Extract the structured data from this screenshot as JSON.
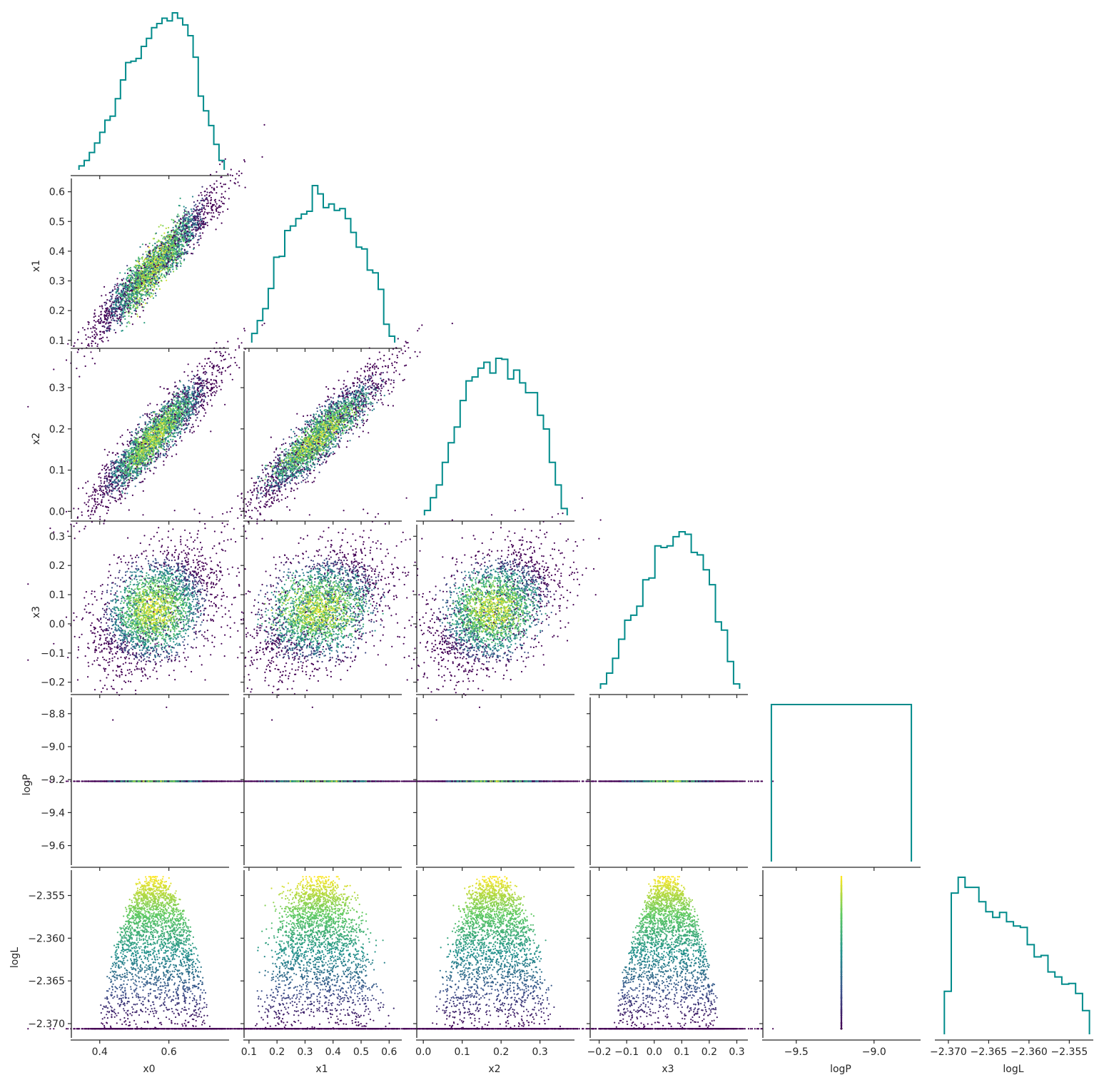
{
  "figure": {
    "type": "corner_pairplot",
    "hist_color": "#008b8b",
    "colormap": "viridis",
    "colormap_stops": [
      "#440154",
      "#3b528b",
      "#21918c",
      "#5ec962",
      "#fde725"
    ],
    "color_by": "logL"
  },
  "variables": [
    {
      "name": "x0",
      "label": "x0",
      "range": [
        0.32,
        0.77
      ],
      "ticks": [
        0.4,
        0.6
      ],
      "tick_labels": [
        "0.4",
        "0.6"
      ]
    },
    {
      "name": "x1",
      "label": "x1",
      "range": [
        0.085,
        0.64
      ],
      "ticks": [
        0.1,
        0.2,
        0.3,
        0.4,
        0.5,
        0.6
      ],
      "tick_labels": [
        "0.1",
        "0.2",
        "0.3",
        "0.4",
        "0.5",
        "0.6"
      ]
    },
    {
      "name": "x2",
      "label": "x2",
      "range": [
        -0.015,
        0.385
      ],
      "ticks": [
        0.0,
        0.1,
        0.2,
        0.3
      ],
      "tick_labels": [
        "0.0",
        "0.1",
        "0.2",
        "0.3"
      ]
    },
    {
      "name": "x3",
      "label": "x3",
      "range": [
        -0.23,
        0.335
      ],
      "ticks": [
        -0.2,
        -0.1,
        0.0,
        0.1,
        0.2,
        0.3
      ],
      "tick_labels": [
        "−0.2",
        "−0.1",
        "0.0",
        "0.1",
        "0.2",
        "0.3"
      ]
    },
    {
      "name": "logP",
      "label": "logP",
      "range": [
        -9.71,
        -8.71
      ],
      "ticks": [
        -9.6,
        -9.4,
        -9.2,
        -9.0,
        -8.8
      ],
      "tick_labels": [
        "−9.6",
        "−9.4",
        "−9.2",
        "−9.0",
        "−8.8"
      ],
      "x_ticks": [
        -9.5,
        -9.0
      ],
      "x_tick_labels": [
        "−9.5",
        "−9.0"
      ]
    },
    {
      "name": "logL",
      "label": "logL",
      "range": [
        -2.3715,
        -2.3522
      ],
      "ticks": [
        -2.37,
        -2.365,
        -2.36,
        -2.355
      ],
      "tick_labels": [
        "−2.370",
        "−2.365",
        "−2.360",
        "−2.355"
      ]
    }
  ],
  "chart_data": [
    {
      "type": "histogram",
      "variable": "x0",
      "color": "#008b8b",
      "bin_edges": [
        0.34,
        0.76
      ],
      "counts": [
        3,
        7,
        13,
        20,
        28,
        37,
        40,
        53,
        67,
        80,
        81,
        83,
        92,
        98,
        106,
        109,
        113,
        111,
        117,
        113,
        108,
        100,
        84,
        55,
        44,
        33,
        19,
        7
      ]
    },
    {
      "type": "histogram",
      "variable": "x1",
      "color": "#008b8b",
      "bin_edges": [
        0.11,
        0.62
      ],
      "counts": [
        10,
        24,
        37,
        59,
        93,
        94,
        122,
        127,
        135,
        140,
        143,
        171,
        162,
        147,
        151,
        144,
        146,
        135,
        120,
        104,
        102,
        79,
        76,
        58,
        20,
        7
      ]
    },
    {
      "type": "histogram",
      "variable": "x2",
      "color": "#008b8b",
      "bin_edges": [
        0.003,
        0.37
      ],
      "counts": [
        5,
        18,
        31,
        54,
        74,
        90,
        117,
        137,
        141,
        150,
        156,
        145,
        160,
        159,
        139,
        148,
        135,
        125,
        125,
        102,
        88,
        54,
        31,
        7
      ]
    },
    {
      "type": "histogram",
      "variable": "x3",
      "color": "#008b8b",
      "bin_edges": [
        -0.195,
        0.31
      ],
      "counts": [
        6,
        19,
        37,
        60,
        83,
        89,
        100,
        132,
        134,
        173,
        171,
        173,
        184,
        190,
        187,
        165,
        162,
        144,
        126,
        81,
        71,
        33,
        6
      ]
    },
    {
      "type": "histogram",
      "variable": "logP",
      "color": "#008b8b",
      "bin_edges": [
        -9.66,
        -8.76
      ],
      "counts": [
        1
      ],
      "note_value": -9.21
    },
    {
      "type": "histogram",
      "variable": "logL",
      "color": "#008b8b",
      "bin_edges": [
        -2.3705,
        -2.3525
      ],
      "counts": [
        60,
        197,
        219,
        205,
        205,
        185,
        171,
        163,
        170,
        157,
        151,
        149,
        125,
        108,
        110,
        87,
        80,
        70,
        71,
        57,
        33
      ]
    },
    {
      "type": "scatter",
      "x": "x0",
      "y": "x1",
      "relation": "y = -0.35 + 1.25*x0",
      "scatter_sd": 0.038,
      "n": 3000
    },
    {
      "type": "scatter",
      "x": "x0",
      "y": "x2",
      "relation": "y = -0.29 + 0.84*x0",
      "scatter_sd": 0.03,
      "n": 3000
    },
    {
      "type": "scatter",
      "x": "x1",
      "y": "x2",
      "relation": "y = 0.03 + 0.45*x1",
      "scatter_sd": 0.045,
      "n": 3000
    },
    {
      "type": "scatter",
      "x": "x0",
      "y": "x3",
      "relation": "uncorrelated",
      "n": 3000
    },
    {
      "type": "scatter",
      "x": "x1",
      "y": "x3",
      "relation": "uncorrelated",
      "n": 3000
    },
    {
      "type": "scatter",
      "x": "x2",
      "y": "x3",
      "relation": "y = -0.05 + 0.55*x2",
      "scatter_sd": 0.09,
      "n": 3000
    },
    {
      "type": "scatter",
      "x": "x0",
      "y": "logP",
      "relation": "constant",
      "y_value": -9.21,
      "n": 3000
    },
    {
      "type": "scatter",
      "x": "x1",
      "y": "logP",
      "relation": "constant",
      "y_value": -9.21,
      "n": 3000
    },
    {
      "type": "scatter",
      "x": "x2",
      "y": "logP",
      "relation": "constant",
      "y_value": -9.21,
      "n": 3000
    },
    {
      "type": "scatter",
      "x": "x3",
      "y": "logP",
      "relation": "constant",
      "y_value": -9.21,
      "n": 3000
    },
    {
      "type": "scatter",
      "x": "x0",
      "y": "logL",
      "relation": "parabolic",
      "peak_x": 0.57,
      "n": 3000
    },
    {
      "type": "scatter",
      "x": "x1",
      "y": "logL",
      "relation": "parabolic",
      "peak_x": 0.36,
      "n": 3000
    },
    {
      "type": "scatter",
      "x": "x2",
      "y": "logL",
      "relation": "parabolic",
      "peak_x": 0.19,
      "n": 3000
    },
    {
      "type": "scatter",
      "x": "x3",
      "y": "logL",
      "relation": "parabolic",
      "peak_x": 0.05,
      "n": 3000
    },
    {
      "type": "scatter",
      "x": "logP",
      "y": "logL",
      "relation": "constant_x",
      "x_value": -9.21,
      "n": 3000
    }
  ]
}
